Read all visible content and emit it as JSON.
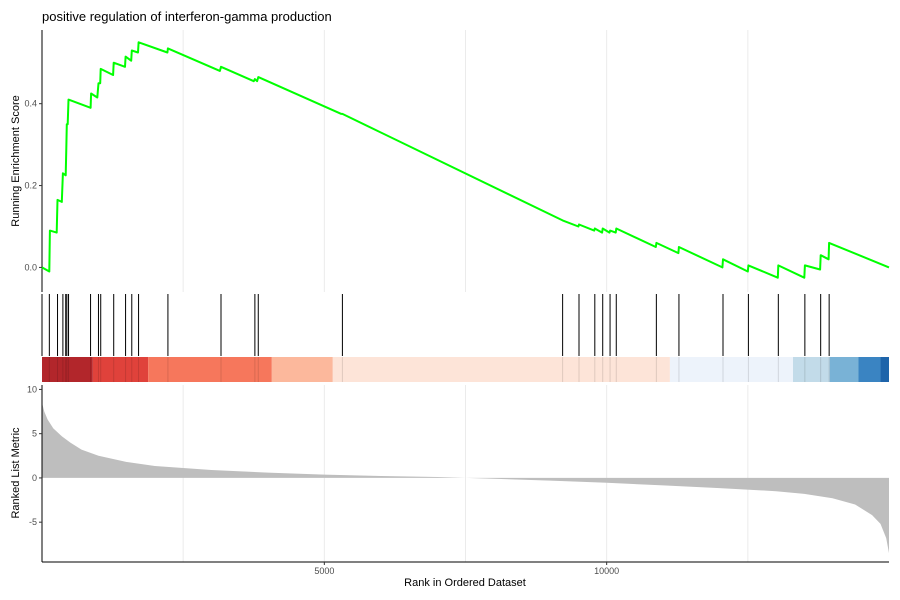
{
  "chart_data": {
    "type": "line",
    "title": "positive regulation of interferon-gamma production",
    "xlabel": "Rank in Ordered Dataset",
    "xlim": [
      0,
      15000
    ],
    "x_ticks": [
      {
        "value": 5000,
        "label": "5000"
      },
      {
        "value": 10000,
        "label": "10000"
      }
    ],
    "running_score": {
      "ylabel": "Running Enrichment Score",
      "ylim": [
        -0.06,
        0.58
      ],
      "y_ticks": [
        {
          "value": 0.0,
          "label": "0.0"
        },
        {
          "value": 0.2,
          "label": "0.2"
        },
        {
          "value": 0.4,
          "label": "0.4"
        }
      ],
      "color": "#00ff00",
      "points": [
        [
          0,
          0
        ],
        [
          130,
          -0.01
        ],
        [
          140,
          0.09
        ],
        [
          260,
          0.085
        ],
        [
          275,
          0.165
        ],
        [
          350,
          0.16
        ],
        [
          370,
          0.23
        ],
        [
          420,
          0.225
        ],
        [
          430,
          0.29
        ],
        [
          440,
          0.35
        ],
        [
          455,
          0.35
        ],
        [
          470,
          0.41
        ],
        [
          860,
          0.39
        ],
        [
          870,
          0.425
        ],
        [
          980,
          0.415
        ],
        [
          1000,
          0.45
        ],
        [
          1030,
          0.45
        ],
        [
          1040,
          0.485
        ],
        [
          1260,
          0.47
        ],
        [
          1270,
          0.5
        ],
        [
          1470,
          0.49
        ],
        [
          1480,
          0.515
        ],
        [
          1580,
          0.505
        ],
        [
          1590,
          0.53
        ],
        [
          1700,
          0.525
        ],
        [
          1710,
          0.55
        ],
        [
          2220,
          0.525
        ],
        [
          2230,
          0.535
        ],
        [
          3150,
          0.48
        ],
        [
          3170,
          0.49
        ],
        [
          3750,
          0.455
        ],
        [
          3770,
          0.46
        ],
        [
          3810,
          0.455
        ],
        [
          3830,
          0.465
        ],
        [
          5300,
          0.375
        ],
        [
          5320,
          0.375
        ],
        [
          9220,
          0.115
        ],
        [
          9500,
          0.1
        ],
        [
          9510,
          0.105
        ],
        [
          9780,
          0.09
        ],
        [
          9790,
          0.095
        ],
        [
          9920,
          0.085
        ],
        [
          9930,
          0.095
        ],
        [
          10050,
          0.085
        ],
        [
          10060,
          0.09
        ],
        [
          10160,
          0.085
        ],
        [
          10170,
          0.095
        ],
        [
          10870,
          0.05
        ],
        [
          10880,
          0.06
        ],
        [
          11270,
          0.035
        ],
        [
          11280,
          0.05
        ],
        [
          12050,
          0
        ],
        [
          12060,
          0.02
        ],
        [
          12500,
          -0.01
        ],
        [
          12510,
          0.005
        ],
        [
          13030,
          -0.025
        ],
        [
          13040,
          0.005
        ],
        [
          13500,
          -0.025
        ],
        [
          13510,
          0.005
        ],
        [
          13780,
          -0.005
        ],
        [
          13790,
          0.03
        ],
        [
          13930,
          0.02
        ],
        [
          13940,
          0.06
        ],
        [
          15000,
          0
        ]
      ]
    },
    "hits": [
      130,
      275,
      370,
      420,
      440,
      470,
      860,
      1000,
      1040,
      1270,
      1480,
      1590,
      1710,
      2230,
      3170,
      3770,
      3830,
      5320,
      9220,
      9510,
      9790,
      9930,
      10060,
      10170,
      10880,
      11280,
      12060,
      12510,
      13040,
      13510,
      13790,
      13940
    ],
    "color_band": [
      {
        "from": 0,
        "to": 900,
        "color": "#b2262b"
      },
      {
        "from": 900,
        "to": 1880,
        "color": "#e0423b"
      },
      {
        "from": 1880,
        "to": 4070,
        "color": "#f6775c"
      },
      {
        "from": 4070,
        "to": 5150,
        "color": "#fcb89c"
      },
      {
        "from": 5150,
        "to": 11120,
        "color": "#fde4d8"
      },
      {
        "from": 11120,
        "to": 13300,
        "color": "#edf3fb"
      },
      {
        "from": 13300,
        "to": 13950,
        "color": "#c2dbe9"
      },
      {
        "from": 13950,
        "to": 14460,
        "color": "#79b2d6"
      },
      {
        "from": 14460,
        "to": 14850,
        "color": "#3a84c2"
      },
      {
        "from": 14850,
        "to": 15000,
        "color": "#1e64aa"
      }
    ],
    "ranked_metric": {
      "ylabel": "Ranked List Metric",
      "ylim": [
        -9.5,
        10.5
      ],
      "y_ticks": [
        {
          "value": -5,
          "label": "-5"
        },
        {
          "value": 0,
          "label": "0"
        },
        {
          "value": 5,
          "label": "5"
        },
        {
          "value": 10,
          "label": "10"
        }
      ],
      "color": "#bebebe",
      "points": [
        [
          0,
          8.5
        ],
        [
          40,
          7.5
        ],
        [
          100,
          6.6
        ],
        [
          200,
          5.6
        ],
        [
          350,
          4.7
        ],
        [
          500,
          4
        ],
        [
          700,
          3.2
        ],
        [
          1000,
          2.5
        ],
        [
          1500,
          1.8
        ],
        [
          2000,
          1.35
        ],
        [
          3000,
          0.9
        ],
        [
          4000,
          0.6
        ],
        [
          5000,
          0.38
        ],
        [
          6000,
          0.22
        ],
        [
          7000,
          0.1
        ],
        [
          7500,
          0
        ],
        [
          8000,
          -0.1
        ],
        [
          9000,
          -0.3
        ],
        [
          10000,
          -0.55
        ],
        [
          11000,
          -0.85
        ],
        [
          12000,
          -1.15
        ],
        [
          13000,
          -1.5
        ],
        [
          13500,
          -1.8
        ],
        [
          14000,
          -2.3
        ],
        [
          14400,
          -3
        ],
        [
          14700,
          -4.2
        ],
        [
          14850,
          -5.2
        ],
        [
          14950,
          -6.8
        ],
        [
          15000,
          -8.5
        ]
      ]
    }
  }
}
